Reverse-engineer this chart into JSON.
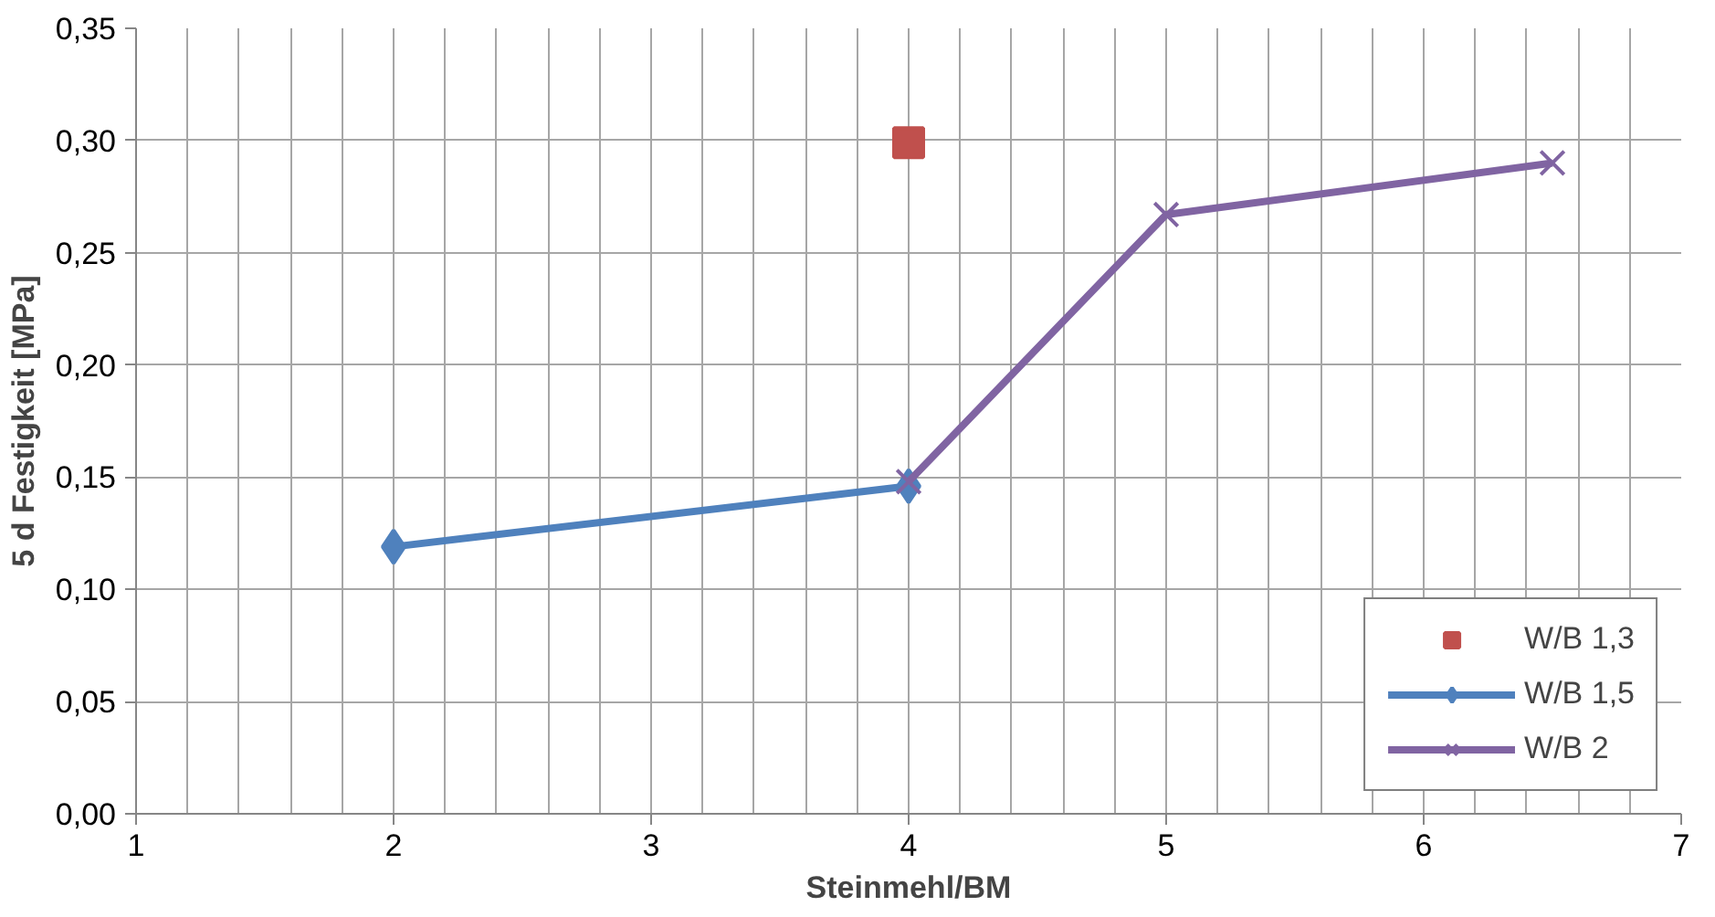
{
  "chart_data": {
    "type": "line",
    "xlabel": "Steinmehl/BM",
    "ylabel": "5 d Festigkeit [MPa]",
    "xlim": [
      1,
      7
    ],
    "xticks": [
      1,
      2,
      3,
      4,
      5,
      6,
      7
    ],
    "ylim": [
      0,
      0.35
    ],
    "yticks": [
      {
        "value": 0,
        "label": "0,00"
      },
      {
        "value": 0.05,
        "label": "0,05"
      },
      {
        "value": 0.1,
        "label": "0,10"
      },
      {
        "value": 0.15,
        "label": "0,15"
      },
      {
        "value": 0.2,
        "label": "0,20"
      },
      {
        "value": 0.25,
        "label": "0,25"
      },
      {
        "value": 0.3,
        "label": "0,30"
      },
      {
        "value": 0.35,
        "label": "0,35"
      }
    ],
    "grid": true,
    "legend": "bottom right",
    "series": [
      {
        "name": "W/B 1,3",
        "type": "scatter",
        "marker": "square",
        "color": "#c0504d",
        "x": [
          4
        ],
        "values": [
          0.299
        ]
      },
      {
        "name": "W/B 1,5",
        "marker": "diamond",
        "color": "#4f81bd",
        "x": [
          2,
          4
        ],
        "values": [
          0.119,
          0.146
        ]
      },
      {
        "name": "W/B 2",
        "marker": "cross",
        "color": "#8064a2",
        "x": [
          4,
          5,
          6.5
        ],
        "values": [
          0.148,
          0.267,
          0.29
        ]
      }
    ]
  }
}
